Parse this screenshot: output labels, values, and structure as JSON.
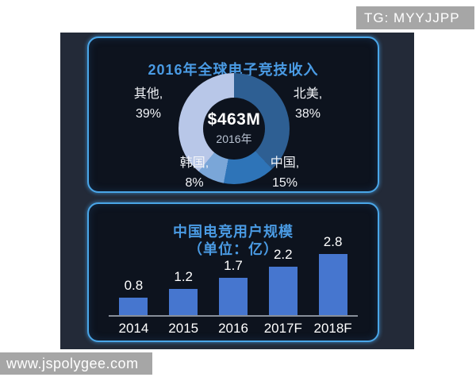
{
  "watermarks": {
    "tg_badge": "TG: MYYJJPP",
    "site_badge": "www.jspolygee.com"
  },
  "colors": {
    "page_bg": "#ffffff",
    "canvas_bg": "#232a38",
    "panel_bg": "#0d131e",
    "panel_border": "#4aa6e8",
    "title_blue": "#4a9be4",
    "text_white": "#f2f4f8",
    "axis_gray": "#878e99",
    "badge_gray": "#a6a6a6"
  },
  "chart_data": [
    {
      "type": "pie",
      "donut": true,
      "title": "2016年全球电子竞技收入",
      "center_value": "$463M",
      "center_label": "2016年",
      "start_angle_deg": 0,
      "direction": "clockwise",
      "inner_radius_ratio": 0.56,
      "slices": [
        {
          "label": "北美",
          "value": 38,
          "label_line": "北美,",
          "pct_line": "38%",
          "color": "#2e5f93"
        },
        {
          "label": "中国",
          "value": 15,
          "label_line": "中国,",
          "pct_line": "15%",
          "color": "#2e74b8"
        },
        {
          "label": "韩国",
          "value": 8,
          "label_line": "韩国,",
          "pct_line": "8%",
          "color": "#7aa6d8"
        },
        {
          "label": "其他",
          "value": 39,
          "label_line": "其他,",
          "pct_line": "39%",
          "color": "#b8c7e8"
        }
      ]
    },
    {
      "type": "bar",
      "title": "中国电竞用户规模",
      "subtitle": "（单位：亿）",
      "categories": [
        "2014",
        "2015",
        "2016",
        "2017F",
        "2018F"
      ],
      "values": [
        0.8,
        1.2,
        1.7,
        2.2,
        2.8
      ],
      "bar_color": "#4676cf",
      "ylim": [
        0,
        3
      ],
      "grid": false,
      "value_labels": true,
      "legend": false
    }
  ]
}
